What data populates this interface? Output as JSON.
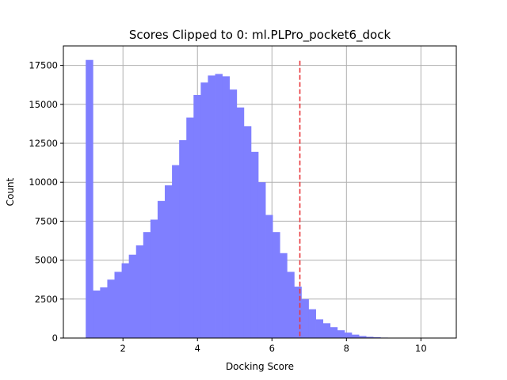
{
  "chart_data": {
    "type": "bar",
    "title": "Scores Clipped to 0: ml.PLPro_pocket6_dock",
    "xlabel": "Docking Score",
    "ylabel": "Count",
    "xlim": [
      0.4,
      10.95
    ],
    "ylim": [
      0,
      18750
    ],
    "xticks": [
      2,
      4,
      6,
      8,
      10
    ],
    "yticks": [
      0,
      2500,
      5000,
      7500,
      10000,
      12500,
      15000,
      17500
    ],
    "xtick_labels": [
      "2",
      "4",
      "6",
      "8",
      "10"
    ],
    "ytick_labels": [
      "0",
      "2500",
      "5000",
      "7500",
      "10000",
      "12500",
      "15000",
      "17500"
    ],
    "grid": true,
    "bin_start": 1.0,
    "bin_width": 0.193,
    "values": [
      17850,
      3050,
      3250,
      3750,
      4250,
      4800,
      5350,
      5950,
      6800,
      7600,
      8800,
      9800,
      11100,
      12700,
      14150,
      15600,
      16400,
      16850,
      16950,
      16800,
      15950,
      14800,
      13600,
      11950,
      10000,
      7900,
      6800,
      5450,
      4250,
      3300,
      2500,
      1850,
      1200,
      950,
      700,
      500,
      350,
      220,
      130,
      80,
      50,
      30,
      20,
      14,
      10,
      8,
      6,
      5,
      4,
      3
    ],
    "threshold": 6.75,
    "colors": {
      "bars": "#7f7fff",
      "threshold": "#e8383d",
      "grid": "#b0b0b0"
    }
  }
}
